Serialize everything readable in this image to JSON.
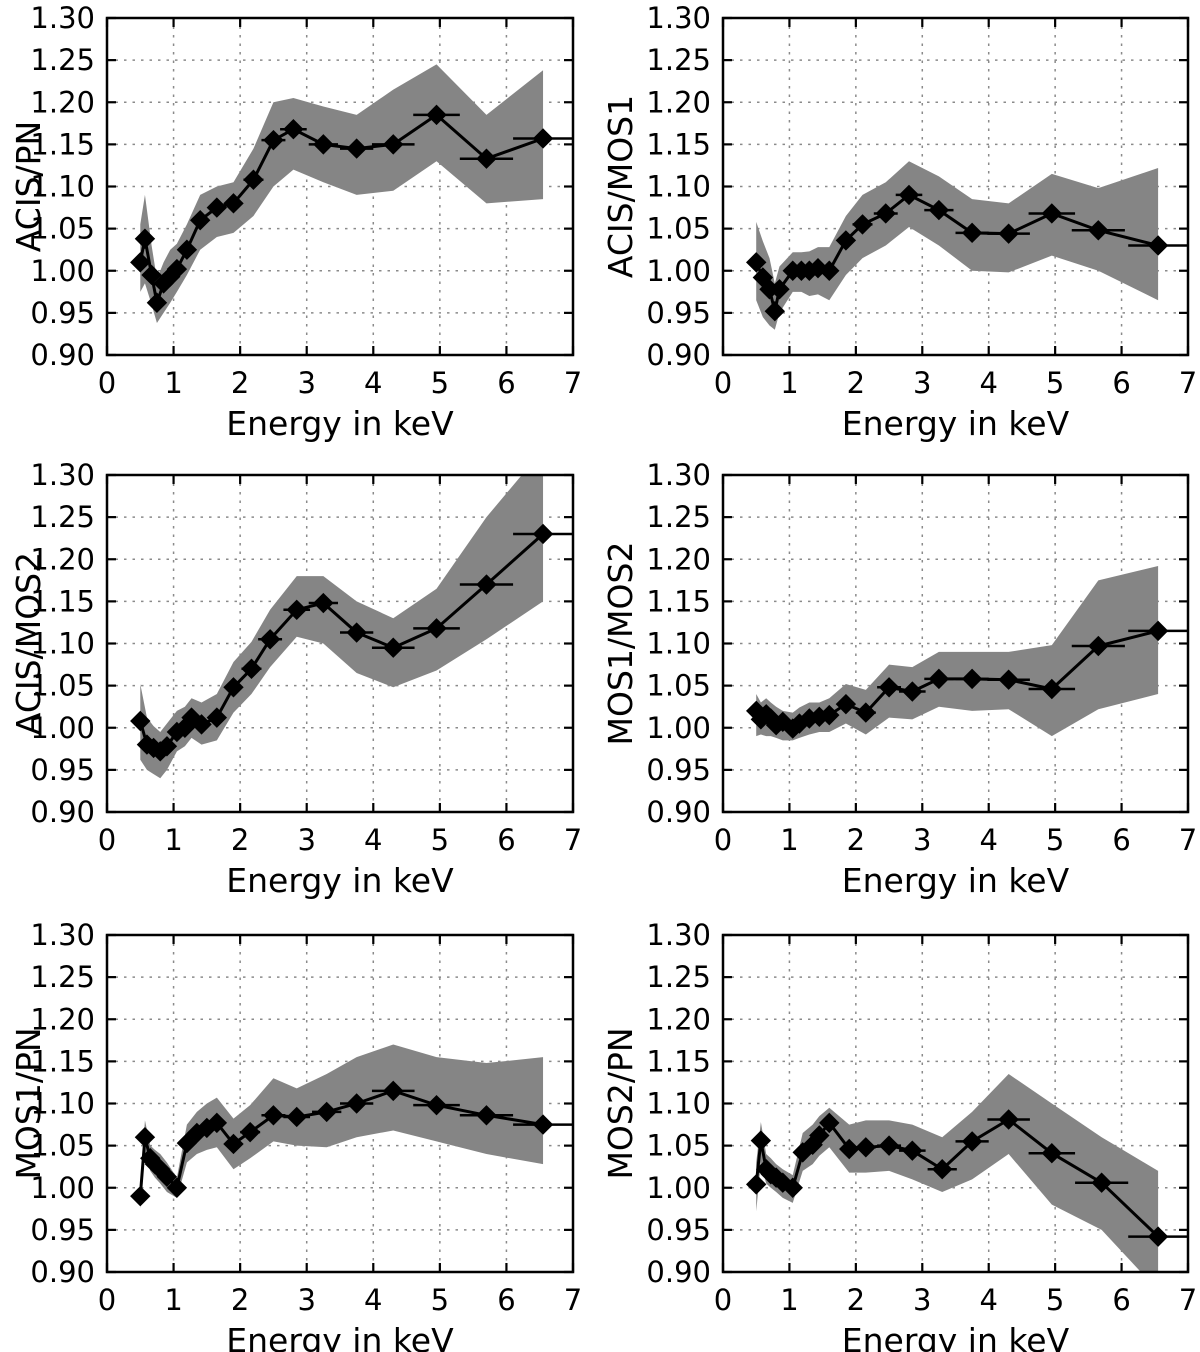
{
  "figure": {
    "xlabel": "Energy in keV",
    "xlim": [
      0,
      7
    ],
    "ylim": [
      0.9,
      1.3
    ],
    "xticks": [
      0,
      1,
      2,
      3,
      4,
      5,
      6,
      7
    ],
    "xtick_labels": [
      "0",
      "1",
      "2",
      "3",
      "4",
      "5",
      "6",
      "7"
    ],
    "yticks": [
      0.9,
      0.95,
      1.0,
      1.05,
      1.1,
      1.15,
      1.2,
      1.25,
      1.3
    ],
    "ytick_labels": [
      "0.90",
      "0.95",
      "1.00",
      "1.05",
      "1.10",
      "1.15",
      "1.20",
      "1.25",
      "1.30"
    ],
    "colors": {
      "line": "#000000",
      "marker": "#000000",
      "band": "#858585",
      "grid": "#8a8a8a",
      "frame": "#000000",
      "background": "#ffffff"
    },
    "grid": "dotted",
    "marker_shape": "diamond"
  },
  "chart_data": [
    {
      "type": "line",
      "name": "acis-pn",
      "ylabel": "ACIS/PN",
      "xlabel": "Energy in keV",
      "xlim": [
        0,
        7
      ],
      "ylim": [
        0.9,
        1.3
      ],
      "x": [
        0.5,
        0.57,
        0.67,
        0.75,
        0.85,
        0.95,
        1.05,
        1.2,
        1.4,
        1.65,
        1.9,
        2.2,
        2.5,
        2.8,
        3.25,
        3.75,
        4.3,
        4.95,
        5.7,
        6.55
      ],
      "y": [
        1.01,
        1.038,
        0.995,
        0.962,
        0.985,
        0.993,
        1.002,
        1.025,
        1.06,
        1.075,
        1.08,
        1.108,
        1.155,
        1.168,
        1.15,
        1.145,
        1.15,
        1.185,
        1.133,
        1.157
      ],
      "xerr": [
        0.04,
        0.04,
        0.04,
        0.04,
        0.05,
        0.05,
        0.06,
        0.07,
        0.09,
        0.1,
        0.13,
        0.15,
        0.18,
        0.2,
        0.22,
        0.25,
        0.32,
        0.35,
        0.4,
        0.45
      ],
      "band_lower": [
        0.975,
        0.985,
        0.96,
        0.938,
        0.95,
        0.962,
        0.975,
        0.995,
        1.025,
        1.04,
        1.045,
        1.065,
        1.1,
        1.12,
        1.105,
        1.09,
        1.095,
        1.13,
        1.08,
        1.085
      ],
      "band_upper": [
        1.055,
        1.09,
        1.03,
        0.99,
        1.01,
        1.025,
        1.032,
        1.055,
        1.09,
        1.1,
        1.105,
        1.145,
        1.2,
        1.205,
        1.195,
        1.185,
        1.215,
        1.245,
        1.185,
        1.238
      ]
    },
    {
      "type": "line",
      "name": "acis-mos1",
      "ylabel": "ACIS/MOS1",
      "xlabel": "Energy in keV",
      "xlim": [
        0,
        7
      ],
      "ylim": [
        0.9,
        1.3
      ],
      "x": [
        0.5,
        0.6,
        0.7,
        0.78,
        0.85,
        1.05,
        1.18,
        1.3,
        1.43,
        1.6,
        1.85,
        2.1,
        2.45,
        2.8,
        3.25,
        3.75,
        4.3,
        4.95,
        5.65,
        6.55
      ],
      "y": [
        1.01,
        0.992,
        0.978,
        0.952,
        0.978,
        1.0,
        1.0,
        1.0,
        1.003,
        1.0,
        1.036,
        1.055,
        1.068,
        1.09,
        1.072,
        1.045,
        1.044,
        1.068,
        1.048,
        1.03
      ],
      "xerr": [
        0.04,
        0.04,
        0.04,
        0.04,
        0.05,
        0.05,
        0.06,
        0.07,
        0.09,
        0.1,
        0.13,
        0.15,
        0.18,
        0.2,
        0.22,
        0.25,
        0.32,
        0.35,
        0.4,
        0.45
      ],
      "band_lower": [
        0.965,
        0.945,
        0.935,
        0.93,
        0.95,
        0.975,
        0.975,
        0.97,
        0.972,
        0.965,
        0.995,
        1.015,
        1.03,
        1.052,
        1.03,
        1.0,
        0.998,
        1.018,
        1.0,
        0.965
      ],
      "band_upper": [
        1.058,
        1.035,
        1.015,
        0.985,
        1.005,
        1.022,
        1.022,
        1.023,
        1.028,
        1.028,
        1.065,
        1.09,
        1.105,
        1.13,
        1.112,
        1.085,
        1.08,
        1.115,
        1.098,
        1.122
      ]
    },
    {
      "type": "line",
      "name": "acis-mos2",
      "ylabel": "ACIS/MOS2",
      "xlabel": "Energy in keV",
      "xlim": [
        0,
        7
      ],
      "ylim": [
        0.9,
        1.3
      ],
      "x": [
        0.5,
        0.6,
        0.7,
        0.8,
        0.9,
        1.05,
        1.17,
        1.27,
        1.42,
        1.65,
        1.9,
        2.17,
        2.45,
        2.85,
        3.25,
        3.75,
        4.3,
        4.95,
        5.7,
        6.55
      ],
      "y": [
        1.008,
        0.98,
        0.976,
        0.972,
        0.978,
        0.995,
        1.0,
        1.012,
        1.004,
        1.012,
        1.048,
        1.07,
        1.105,
        1.14,
        1.148,
        1.113,
        1.095,
        1.118,
        1.17,
        1.23
      ],
      "xerr": [
        0.04,
        0.04,
        0.04,
        0.04,
        0.05,
        0.05,
        0.06,
        0.07,
        0.09,
        0.1,
        0.13,
        0.15,
        0.18,
        0.2,
        0.22,
        0.25,
        0.32,
        0.35,
        0.4,
        0.45
      ],
      "band_lower": [
        0.962,
        0.95,
        0.945,
        0.94,
        0.95,
        0.972,
        0.978,
        0.988,
        0.98,
        0.985,
        1.018,
        1.04,
        1.072,
        1.108,
        1.1,
        1.065,
        1.048,
        1.068,
        1.105,
        1.15
      ],
      "band_upper": [
        1.052,
        1.012,
        1.002,
        0.995,
        1.005,
        1.02,
        1.025,
        1.035,
        1.03,
        1.04,
        1.078,
        1.102,
        1.14,
        1.18,
        1.18,
        1.15,
        1.13,
        1.165,
        1.25,
        1.33
      ]
    },
    {
      "type": "line",
      "name": "mos1-mos2",
      "ylabel": "MOS1/MOS2",
      "xlabel": "Energy in keV",
      "xlim": [
        0,
        7
      ],
      "ylim": [
        0.9,
        1.3
      ],
      "x": [
        0.5,
        0.57,
        0.65,
        0.72,
        0.8,
        0.9,
        1.05,
        1.15,
        1.3,
        1.45,
        1.6,
        1.85,
        2.15,
        2.5,
        2.85,
        3.25,
        3.75,
        4.3,
        4.95,
        5.65,
        6.55
      ],
      "y": [
        1.02,
        1.01,
        1.016,
        1.011,
        1.003,
        1.007,
        0.999,
        1.005,
        1.011,
        1.013,
        1.015,
        1.028,
        1.018,
        1.048,
        1.043,
        1.058,
        1.058,
        1.057,
        1.046,
        1.097,
        1.115
      ],
      "xerr": [
        0.04,
        0.04,
        0.04,
        0.04,
        0.04,
        0.05,
        0.05,
        0.06,
        0.07,
        0.08,
        0.1,
        0.13,
        0.15,
        0.18,
        0.2,
        0.22,
        0.25,
        0.32,
        0.35,
        0.4,
        0.45
      ],
      "band_lower": [
        0.99,
        0.992,
        0.99,
        0.99,
        0.988,
        0.985,
        0.985,
        0.988,
        0.992,
        0.995,
        0.995,
        1.005,
        0.992,
        1.012,
        1.01,
        1.025,
        1.02,
        1.022,
        0.99,
        1.022,
        1.04
      ],
      "band_upper": [
        1.04,
        1.03,
        1.035,
        1.03,
        1.025,
        1.02,
        1.018,
        1.024,
        1.03,
        1.03,
        1.035,
        1.052,
        1.045,
        1.075,
        1.072,
        1.09,
        1.09,
        1.09,
        1.098,
        1.175,
        1.192
      ]
    },
    {
      "type": "line",
      "name": "mos1-pn",
      "ylabel": "MOS1/PN",
      "xlabel": "Energy in keV",
      "xlim": [
        0,
        7
      ],
      "ylim": [
        0.9,
        1.3
      ],
      "x": [
        0.5,
        0.57,
        0.65,
        0.72,
        0.8,
        0.9,
        1.05,
        1.2,
        1.35,
        1.5,
        1.65,
        1.9,
        2.15,
        2.5,
        2.85,
        3.3,
        3.75,
        4.3,
        4.95,
        5.7,
        6.55
      ],
      "y": [
        0.99,
        1.06,
        1.035,
        1.028,
        1.022,
        1.013,
        1.0,
        1.053,
        1.065,
        1.071,
        1.077,
        1.052,
        1.066,
        1.086,
        1.084,
        1.09,
        1.1,
        1.115,
        1.098,
        1.086,
        1.075
      ],
      "xerr": [
        0.04,
        0.04,
        0.04,
        0.04,
        0.04,
        0.05,
        0.05,
        0.06,
        0.07,
        0.08,
        0.1,
        0.13,
        0.15,
        0.18,
        0.2,
        0.22,
        0.25,
        0.32,
        0.35,
        0.4,
        0.45
      ],
      "band_lower": [
        0.975,
        1.04,
        1.02,
        1.012,
        1.005,
        0.995,
        0.988,
        1.03,
        1.04,
        1.045,
        1.048,
        1.022,
        1.035,
        1.055,
        1.05,
        1.048,
        1.06,
        1.068,
        1.055,
        1.04,
        1.028
      ],
      "band_upper": [
        1.005,
        1.08,
        1.05,
        1.045,
        1.04,
        1.03,
        1.012,
        1.075,
        1.09,
        1.1,
        1.107,
        1.082,
        1.098,
        1.13,
        1.118,
        1.135,
        1.155,
        1.17,
        1.155,
        1.148,
        1.155
      ]
    },
    {
      "type": "line",
      "name": "mos2-pn",
      "ylabel": "MOS2/PN",
      "xlabel": "Energy in keV",
      "xlim": [
        0,
        7
      ],
      "ylim": [
        0.9,
        1.3
      ],
      "x": [
        0.5,
        0.57,
        0.65,
        0.72,
        0.8,
        0.9,
        1.05,
        1.2,
        1.35,
        1.45,
        1.6,
        1.9,
        2.15,
        2.5,
        2.85,
        3.3,
        3.75,
        4.3,
        4.95,
        5.7,
        6.55
      ],
      "y": [
        1.004,
        1.056,
        1.022,
        1.016,
        1.012,
        1.006,
        1.0,
        1.042,
        1.051,
        1.062,
        1.077,
        1.046,
        1.048,
        1.05,
        1.044,
        1.022,
        1.055,
        1.081,
        1.041,
        1.006,
        0.942
      ],
      "xerr": [
        0.04,
        0.04,
        0.04,
        0.04,
        0.04,
        0.05,
        0.05,
        0.06,
        0.07,
        0.08,
        0.1,
        0.13,
        0.15,
        0.18,
        0.2,
        0.22,
        0.25,
        0.32,
        0.35,
        0.4,
        0.45
      ],
      "band_lower": [
        0.972,
        1.03,
        1.005,
        1.0,
        0.995,
        0.988,
        0.982,
        1.02,
        1.028,
        1.038,
        1.048,
        1.018,
        1.018,
        1.02,
        1.01,
        0.995,
        1.01,
        1.04,
        0.98,
        0.95,
        0.878
      ],
      "band_upper": [
        1.03,
        1.078,
        1.04,
        1.035,
        1.028,
        1.022,
        1.015,
        1.065,
        1.075,
        1.085,
        1.095,
        1.075,
        1.08,
        1.08,
        1.075,
        1.06,
        1.09,
        1.135,
        1.1,
        1.06,
        1.02
      ]
    }
  ]
}
